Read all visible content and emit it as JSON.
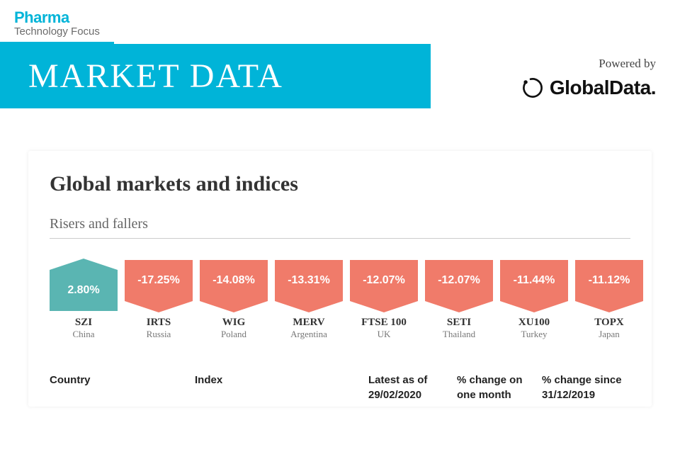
{
  "logo": {
    "line1": "Pharma",
    "line2": "Technology Focus"
  },
  "header": {
    "title": "MARKET DATA",
    "powered_by": "Powered by",
    "brand_prefix": "Global",
    "brand_suffix": "Data."
  },
  "colors": {
    "accent": "#00b4d8",
    "riser": "#5ab5b2",
    "faller": "#f07b6a"
  },
  "card": {
    "title": "Global markets and indices",
    "subtitle": "Risers and fallers"
  },
  "tiles": [
    {
      "value": "2.80%",
      "code": "SZI",
      "country": "China",
      "dir": "riser"
    },
    {
      "value": "-17.25%",
      "code": "IRTS",
      "country": "Russia",
      "dir": "faller"
    },
    {
      "value": "-14.08%",
      "code": "WIG",
      "country": "Poland",
      "dir": "faller"
    },
    {
      "value": "-13.31%",
      "code": "MERV",
      "country": "Argentina",
      "dir": "faller"
    },
    {
      "value": "-12.07%",
      "code": "FTSE 100",
      "country": "UK",
      "dir": "faller"
    },
    {
      "value": "-12.07%",
      "code": "SETI",
      "country": "Thailand",
      "dir": "faller"
    },
    {
      "value": "-11.44%",
      "code": "XU100",
      "country": "Turkey",
      "dir": "faller"
    },
    {
      "value": "-11.12%",
      "code": "TOPX",
      "country": "Japan",
      "dir": "faller"
    }
  ],
  "table": {
    "headers": {
      "country": "Country",
      "index": "Index",
      "latest": "Latest as of 29/02/2020",
      "month": "% change on one month",
      "since": "% change since 31/12/2019"
    }
  }
}
